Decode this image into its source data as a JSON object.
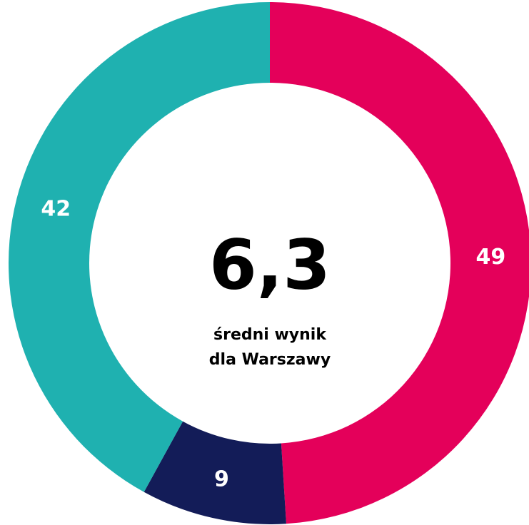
{
  "chart_data": {
    "type": "donut",
    "values": [
      49,
      9,
      42
    ],
    "colors": [
      "#e4005a",
      "#131c58",
      "#1fb1b0"
    ],
    "center_label": "6,3",
    "center_text": [
      "średni wynik",
      "dla Warszawy"
    ]
  }
}
